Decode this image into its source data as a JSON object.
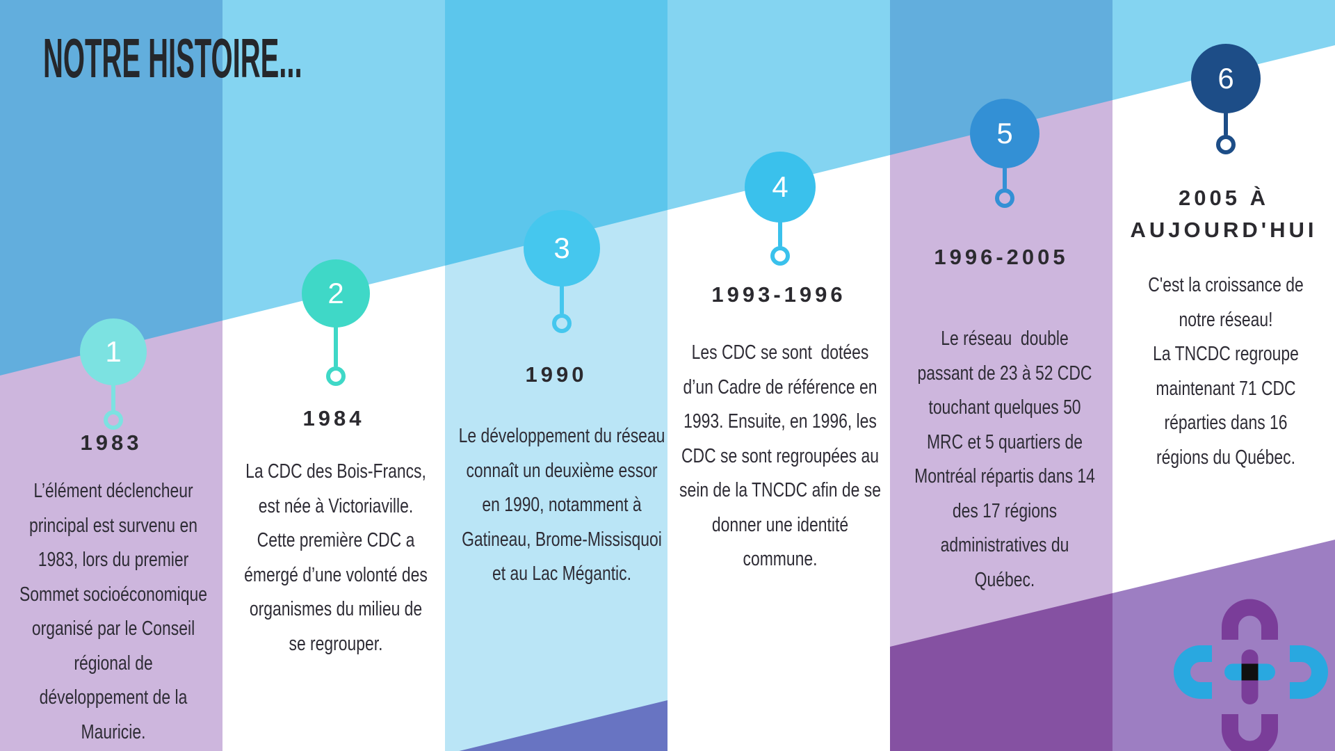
{
  "title": "NOTRE HISTOIRE...",
  "colors": {
    "title_text": "#25272b",
    "heading_text": "#2b2a2f",
    "body_text": "#2e2c35",
    "number_text": "#ffffff",
    "logo_purple": "#7a3d99",
    "logo_cyan": "#29a8e0",
    "logo_center": "#101010"
  },
  "milestones": [
    {
      "number": "1",
      "year": "1983",
      "description": "L’élément déclencheur\nprincipal est survenu en\n1983, lors du premier\nSommet socioéconomique\norganisé par le Conseil\nrégional de\ndéveloppement de la\nMauricie.",
      "circle_color": "#7ce2e1",
      "top_background": "#62aedd",
      "bottom_background": "#cdb6dd",
      "band_color": null
    },
    {
      "number": "2",
      "year": "1984",
      "description": "La CDC des Bois-Francs,\nest née à Victoriaville.\nCette première CDC a\némergé d’une volonté des\norganismes du milieu de\nse regrouper.",
      "circle_color": "#3fd8c7",
      "top_background": "#84d4f1",
      "bottom_background": "#ffffff",
      "band_color": null
    },
    {
      "number": "3",
      "year": "1990",
      "description": "Le développement du réseau\nconnaît un deuxième essor\nen 1990, notamment à\nGatineau, Brome-Missisquoi\net au Lac Mégantic.",
      "circle_color": "#45c7ee",
      "top_background": "#5cc6ec",
      "bottom_background": "#bae5f6",
      "band_color": "#6874c2"
    },
    {
      "number": "4",
      "year": "1993-1996",
      "description": "Les CDC se sont  dotées\nd’un Cadre de référence en\n1993. Ensuite, en 1996, les\nCDC se sont regroupées au\nsein de la TNCDC afin de se\ndonner une identité\ncommune.",
      "circle_color": "#3ac1ec",
      "top_background": "#84d4f1",
      "bottom_background": "#ffffff",
      "band_color": null
    },
    {
      "number": "5",
      "year": "1996-2005",
      "description": "Le réseau  double\npassant de 23 à 52 CDC\ntouchant quelques 50\nMRC et 5 quartiers de\nMontréal répartis dans 14\ndes 17 régions\nadministratives du\nQuébec.",
      "circle_color": "#3390d5",
      "top_background": "#62aedd",
      "bottom_background": "#cdb6dd",
      "band_color": "#8551a2"
    },
    {
      "number": "6",
      "year": "2005 À\nAUJOURD'HUI",
      "description": "C'est la croissance de\nnotre réseau!\nLa TNCDC regroupe\nmaintenant 71 CDC\nréparties dans 16\nrégions du Québec.",
      "circle_color": "#1d4d87",
      "top_background": "#84d4f1",
      "bottom_background": "#ffffff",
      "band_color": "#9d7ec2"
    }
  ]
}
